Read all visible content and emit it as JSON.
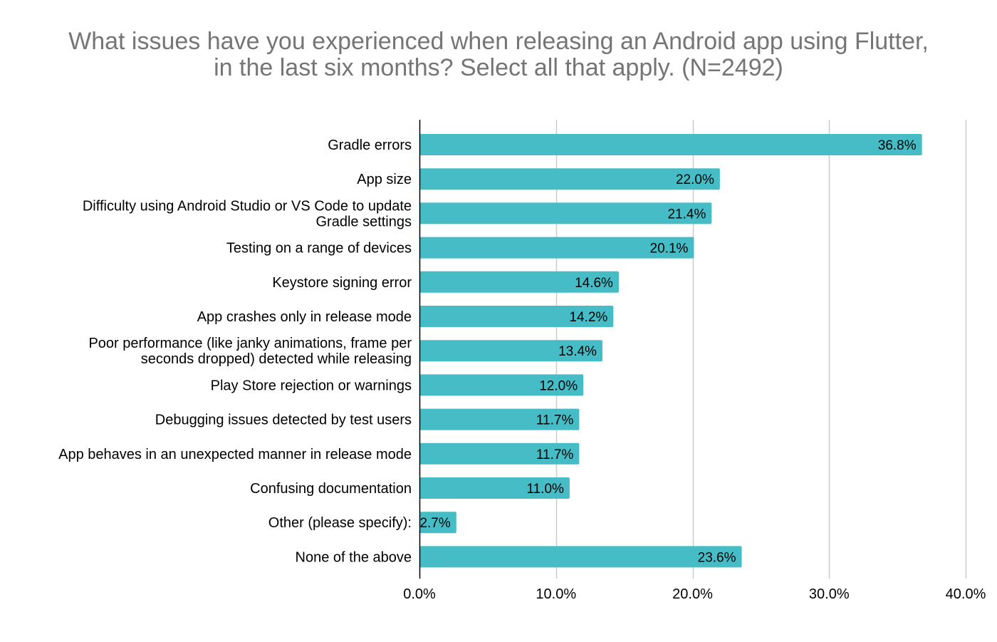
{
  "chart_data": {
    "type": "bar",
    "orientation": "horizontal",
    "title_lines": [
      "What issues have you experienced when releasing an Android app using Flutter,",
      "in the last six months? Select all that apply. (N=2492)"
    ],
    "categories": [
      [
        "Gradle errors"
      ],
      [
        "App size"
      ],
      [
        "Difficulty using Android Studio or VS Code to update",
        "Gradle settings"
      ],
      [
        "Testing on a range of devices"
      ],
      [
        "Keystore signing error"
      ],
      [
        "App crashes only in release mode"
      ],
      [
        "Poor performance (like janky animations, frame per",
        "seconds dropped) detected while releasing"
      ],
      [
        "Play Store rejection or warnings"
      ],
      [
        "Debugging issues detected by test users"
      ],
      [
        "App behaves in an unexpected manner in release mode"
      ],
      [
        "Confusing documentation"
      ],
      [
        "Other (please specify):"
      ],
      [
        "None of the above"
      ]
    ],
    "values": [
      36.8,
      22.0,
      21.4,
      20.1,
      14.6,
      14.2,
      13.4,
      12.0,
      11.7,
      11.7,
      11.0,
      2.7,
      23.6
    ],
    "value_labels": [
      "36.8%",
      "22.0%",
      "21.4%",
      "20.1%",
      "14.6%",
      "14.2%",
      "13.4%",
      "12.0%",
      "11.7%",
      "11.7%",
      "11.0%",
      "2.7%",
      "23.6%"
    ],
    "xlim": [
      0,
      40
    ],
    "x_ticks": [
      0,
      10,
      20,
      30,
      40
    ],
    "x_tick_labels": [
      "0.0%",
      "10.0%",
      "20.0%",
      "30.0%",
      "40.0%"
    ],
    "grid": "vertical",
    "legend": "none",
    "bar_color": "#46bdc6",
    "title_color": "#757575",
    "grid_color": "#cccccc",
    "axis_color": "#000000"
  }
}
